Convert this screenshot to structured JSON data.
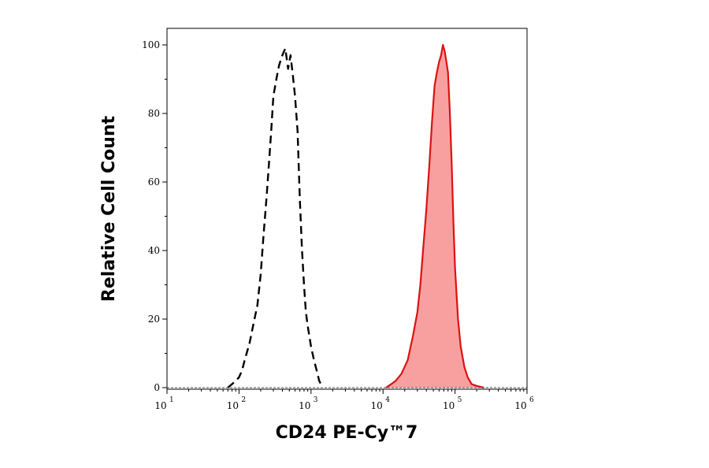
{
  "chart_data": {
    "type": "area",
    "xlabel": "CD24 PE-Cy™7",
    "ylabel": "Relative Cell Count",
    "x_scale": "log",
    "xlim": [
      10,
      1000000
    ],
    "ylim": [
      0,
      100
    ],
    "x_ticks": [
      {
        "value": 10,
        "base": "10",
        "exp": "1"
      },
      {
        "value": 100,
        "base": "10",
        "exp": "2"
      },
      {
        "value": 1000,
        "base": "10",
        "exp": "3"
      },
      {
        "value": 10000,
        "base": "10",
        "exp": "4"
      },
      {
        "value": 100000,
        "base": "10",
        "exp": "5"
      },
      {
        "value": 1000000,
        "base": "10",
        "exp": "6"
      }
    ],
    "y_ticks": [
      {
        "value": 0,
        "label": "0"
      },
      {
        "value": 20,
        "label": "20"
      },
      {
        "value": 40,
        "label": "40"
      },
      {
        "value": 60,
        "label": "60"
      },
      {
        "value": 80,
        "label": "80"
      },
      {
        "value": 100,
        "label": "100"
      }
    ],
    "grid": false,
    "series": [
      {
        "style": "dashed",
        "color": "#000000",
        "fill": "none",
        "x": [
          70,
          80,
          90,
          100,
          110,
          120,
          140,
          160,
          180,
          200,
          220,
          240,
          260,
          280,
          300,
          330,
          360,
          400,
          440,
          480,
          520,
          560,
          600,
          650,
          700,
          750,
          800,
          850,
          900,
          1000,
          1100,
          1200,
          1300,
          1450
        ],
        "y": [
          0,
          1,
          2,
          3,
          5,
          8,
          13,
          19,
          24,
          33,
          45,
          55,
          65,
          75,
          85,
          90,
          94,
          97,
          99,
          93,
          97,
          91,
          85,
          75,
          55,
          40,
          30,
          22,
          18,
          12,
          8,
          5,
          2,
          0
        ]
      },
      {
        "style": "solid",
        "color": "#dd1111",
        "fill": "#f8a0a0",
        "x": [
          11000,
          13000,
          15000,
          18000,
          22000,
          26000,
          30000,
          33000,
          36000,
          40000,
          44000,
          48000,
          52000,
          56000,
          60000,
          64000,
          68000,
          72000,
          76000,
          80000,
          85000,
          90000,
          95000,
          100000,
          110000,
          120000,
          135000,
          150000,
          170000,
          200000,
          250000
        ],
        "y": [
          0,
          1,
          2,
          4,
          8,
          15,
          22,
          30,
          40,
          52,
          65,
          78,
          88,
          92,
          95,
          97,
          100,
          98,
          95,
          92,
          80,
          65,
          48,
          35,
          20,
          12,
          6,
          3,
          1,
          0.5,
          0
        ]
      }
    ]
  }
}
